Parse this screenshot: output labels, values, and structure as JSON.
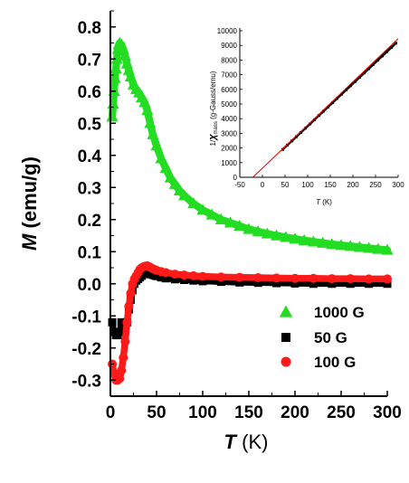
{
  "chart_data": [
    {
      "type": "scatter",
      "xlabel_italic": "T",
      "xlabel_unit": " (K)",
      "ylabel_italic": "M",
      "ylabel_unit": " (emu/g)",
      "xlim": [
        0,
        300
      ],
      "ylim": [
        -0.35,
        0.85
      ],
      "xticks": [
        "0",
        "50",
        "100",
        "150",
        "200",
        "250",
        "300"
      ],
      "yticks": [
        "-0.3",
        "-0.2",
        "-0.1",
        "0.0",
        "0.1",
        "0.2",
        "0.3",
        "0.4",
        "0.5",
        "0.6",
        "0.7",
        "0.8"
      ],
      "legend_position": "lower-right",
      "series": [
        {
          "name": "1000 G",
          "marker": "triangle",
          "color": "#22dd22",
          "x": [
            2,
            3,
            4,
            5,
            6,
            7,
            8,
            9,
            10,
            12,
            14,
            16,
            18,
            20,
            22,
            25,
            28,
            31,
            34,
            37,
            40,
            43,
            46,
            50,
            55,
            60,
            65,
            70,
            75,
            80,
            90,
            100,
            110,
            120,
            130,
            140,
            150,
            160,
            170,
            180,
            190,
            200,
            210,
            220,
            230,
            240,
            250,
            260,
            270,
            280,
            290,
            300
          ],
          "y": [
            0.52,
            0.56,
            0.6,
            0.64,
            0.67,
            0.7,
            0.73,
            0.745,
            0.75,
            0.745,
            0.73,
            0.71,
            0.685,
            0.665,
            0.645,
            0.62,
            0.605,
            0.595,
            0.58,
            0.565,
            0.54,
            0.5,
            0.465,
            0.43,
            0.39,
            0.36,
            0.33,
            0.31,
            0.29,
            0.275,
            0.25,
            0.23,
            0.215,
            0.2,
            0.19,
            0.18,
            0.17,
            0.163,
            0.156,
            0.15,
            0.145,
            0.14,
            0.135,
            0.131,
            0.127,
            0.123,
            0.12,
            0.117,
            0.114,
            0.111,
            0.108,
            0.105
          ]
        },
        {
          "name": "50 G",
          "marker": "square",
          "color": "#000000",
          "x": [
            2,
            4,
            6,
            8,
            10,
            12,
            14,
            16,
            18,
            20,
            22,
            24,
            26,
            28,
            30,
            32,
            34,
            36,
            38,
            40,
            42,
            44,
            46,
            48,
            50,
            55,
            60,
            70,
            80,
            90,
            100,
            120,
            140,
            160,
            180,
            200,
            220,
            240,
            260,
            280,
            300
          ],
          "y": [
            -0.12,
            -0.15,
            -0.16,
            -0.16,
            -0.15,
            -0.12,
            -0.13,
            -0.14,
            -0.12,
            -0.08,
            -0.05,
            -0.02,
            0.0,
            0.01,
            0.015,
            0.02,
            0.025,
            0.03,
            0.032,
            0.035,
            0.032,
            0.03,
            0.028,
            0.026,
            0.024,
            0.02,
            0.017,
            0.014,
            0.012,
            0.01,
            0.008,
            0.006,
            0.004,
            0.003,
            0.002,
            0.001,
            0.0,
            0.0,
            0.0,
            0.0,
            0.0
          ]
        },
        {
          "name": "100 G",
          "marker": "circle",
          "color": "#ff1a1a",
          "x": [
            2,
            4,
            6,
            8,
            10,
            12,
            14,
            16,
            18,
            20,
            22,
            24,
            26,
            28,
            30,
            32,
            34,
            36,
            38,
            40,
            42,
            44,
            46,
            48,
            50,
            55,
            60,
            70,
            80,
            90,
            100,
            120,
            140,
            160,
            180,
            200,
            220,
            240,
            260,
            280,
            300
          ],
          "y": [
            -0.25,
            -0.28,
            -0.3,
            -0.3,
            -0.295,
            -0.27,
            -0.23,
            -0.18,
            -0.12,
            -0.07,
            -0.03,
            0.0,
            0.015,
            0.025,
            0.035,
            0.045,
            0.05,
            0.053,
            0.055,
            0.056,
            0.053,
            0.05,
            0.047,
            0.044,
            0.042,
            0.038,
            0.035,
            0.03,
            0.027,
            0.025,
            0.023,
            0.021,
            0.02,
            0.019,
            0.018,
            0.017,
            0.017,
            0.016,
            0.016,
            0.015,
            0.015
          ]
        }
      ]
    },
    {
      "type": "scatter",
      "placement": "inset-top-right",
      "xlabel_italic": "T",
      "xlabel_unit": " (K)",
      "ylabel_prefix": "1/",
      "ylabel_italic": "χ",
      "ylabel_sub": "mass",
      "ylabel_unit": " (g-Gauss/emu)",
      "xlim": [
        -50,
        300
      ],
      "ylim": [
        0,
        10000
      ],
      "xticks": [
        "-50",
        "0",
        "50",
        "100",
        "150",
        "200",
        "250",
        "300"
      ],
      "yticks": [
        "0",
        "1000",
        "2000",
        "3000",
        "4000",
        "5000",
        "6000",
        "7000",
        "8000",
        "9000",
        "10000"
      ],
      "series": [
        {
          "name": "data",
          "marker": "square",
          "color": "#000000",
          "x": [
            45,
            55,
            65,
            75,
            85,
            95,
            105,
            115,
            125,
            135,
            145,
            155,
            165,
            175,
            185,
            195,
            205,
            215,
            225,
            235,
            245,
            255,
            265,
            275,
            285,
            295
          ],
          "y": [
            1900,
            2190,
            2480,
            2770,
            3060,
            3350,
            3640,
            3930,
            4220,
            4510,
            4800,
            5090,
            5380,
            5670,
            5960,
            6250,
            6540,
            6830,
            7120,
            7410,
            7700,
            7990,
            8280,
            8570,
            8860,
            9150
          ]
        },
        {
          "name": "fit",
          "type": "line",
          "color": "#ff0000",
          "x": [
            -21,
            300
          ],
          "y": [
            0,
            9458
          ]
        }
      ]
    }
  ]
}
